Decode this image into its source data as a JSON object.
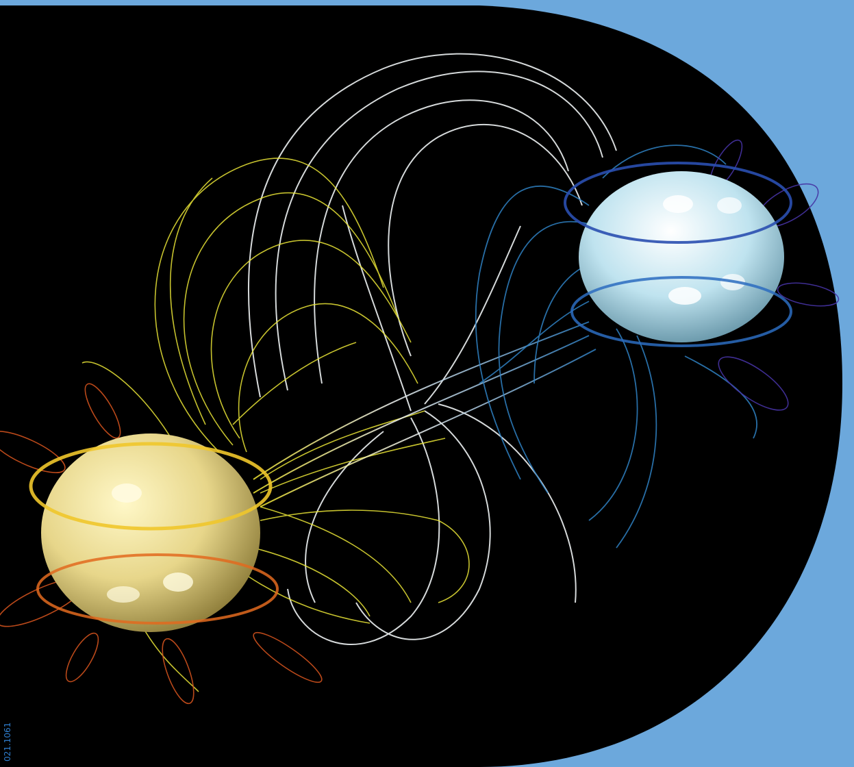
{
  "image": {
    "subject": "magnetic-field-lines-between-two-spheres",
    "colors": {
      "frame": "#6ca8dc",
      "background": "#000000",
      "sphere_left": "#e9d98a",
      "sphere_right": "#bfe3ef",
      "lines_left": "#e6e432",
      "lines_left_outer": "#d2531c",
      "lines_middle": "#e8eef0",
      "lines_right": "#2e7fc3",
      "lines_right_outer": "#43319f"
    }
  },
  "side_caption": "021.1061"
}
